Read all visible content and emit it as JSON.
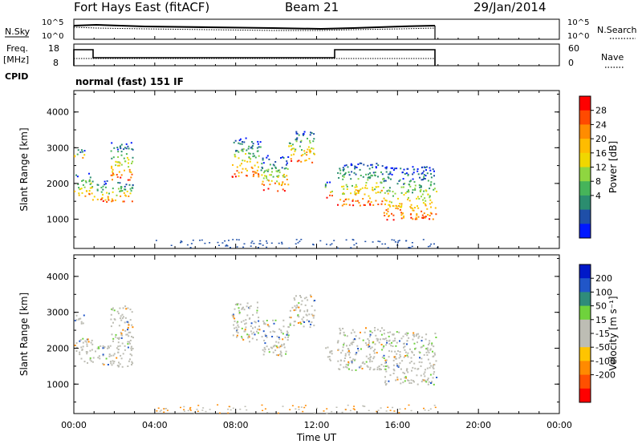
{
  "header": {
    "station": "Fort Hays East (fitACF)",
    "beam": "Beam 21",
    "date": "29/Jan/2014"
  },
  "meta_panel": {
    "nsky_label": "N.Sky",
    "nsearch_label": "N.Search",
    "freq_label": "Freq.",
    "freq_unit": "[MHz]",
    "nave_label": "Nave",
    "cpid_label": "CPID",
    "mode": "normal (fast) 151 IF",
    "noise_ticks": [
      "10^5",
      "10^0"
    ],
    "freq_ticks": [
      "18",
      "8"
    ],
    "nave_ticks": [
      "60",
      "0"
    ]
  },
  "chart_data": [
    {
      "type": "heatmap",
      "panel": "power",
      "ylabel": "Slant Range [km]",
      "yticks": [
        1000,
        2000,
        3000,
        4000
      ],
      "ylim": [
        180,
        4600
      ],
      "xlim": [
        0,
        24
      ],
      "colorbar": {
        "label": "Power [dB]",
        "ticks": [
          "28",
          "24",
          "20",
          "16",
          "12",
          "8",
          "4"
        ],
        "colors": [
          "#ff0000",
          "#ff4a00",
          "#ff8c00",
          "#ffbc00",
          "#f0d700",
          "#8fd640",
          "#46b45a",
          "#2b8d6f",
          "#1f4fa8",
          "#0018ff"
        ]
      }
    },
    {
      "type": "heatmap",
      "panel": "velocity",
      "ylabel": "Slant Range [km]",
      "yticks": [
        1000,
        2000,
        3000,
        4000
      ],
      "ylim": [
        180,
        4600
      ],
      "xlim": [
        0,
        24
      ],
      "colorbar": {
        "label": "Velocity [m s⁻¹]",
        "ticks": [
          "200",
          "100",
          "50",
          "15",
          "-15",
          "-50",
          "-100",
          "-200"
        ],
        "colors": [
          "#0018c8",
          "#2156c8",
          "#2f8c7a",
          "#6fd23c",
          "#bdbdb4",
          "#bdbdb4",
          "#ffc400",
          "#ff8a00",
          "#ff5000",
          "#ff0000"
        ]
      }
    }
  ],
  "x_axis": {
    "ticks": [
      "00:00",
      "04:00",
      "08:00",
      "12:00",
      "16:00",
      "20:00",
      "00:00"
    ],
    "label": "Time UT"
  },
  "scatter_regions": [
    {
      "t0": 0.0,
      "t1": 0.9,
      "lo": 1600,
      "hi": 2300
    },
    {
      "t0": 0.0,
      "t1": 0.6,
      "lo": 2700,
      "hi": 3000
    },
    {
      "t0": 0.9,
      "t1": 2.9,
      "lo": 1500,
      "hi": 2100
    },
    {
      "t0": 1.8,
      "t1": 2.9,
      "lo": 2100,
      "hi": 3200
    },
    {
      "t0": 7.8,
      "t1": 9.2,
      "lo": 2200,
      "hi": 3300
    },
    {
      "t0": 9.2,
      "t1": 10.6,
      "lo": 1800,
      "hi": 2800
    },
    {
      "t0": 10.6,
      "t1": 11.9,
      "lo": 2600,
      "hi": 3500
    },
    {
      "t0": 12.4,
      "t1": 12.8,
      "lo": 1600,
      "hi": 2100
    },
    {
      "t0": 13.0,
      "t1": 15.3,
      "lo": 1400,
      "hi": 2600
    },
    {
      "t0": 15.3,
      "t1": 17.9,
      "lo": 1000,
      "hi": 2500
    }
  ]
}
